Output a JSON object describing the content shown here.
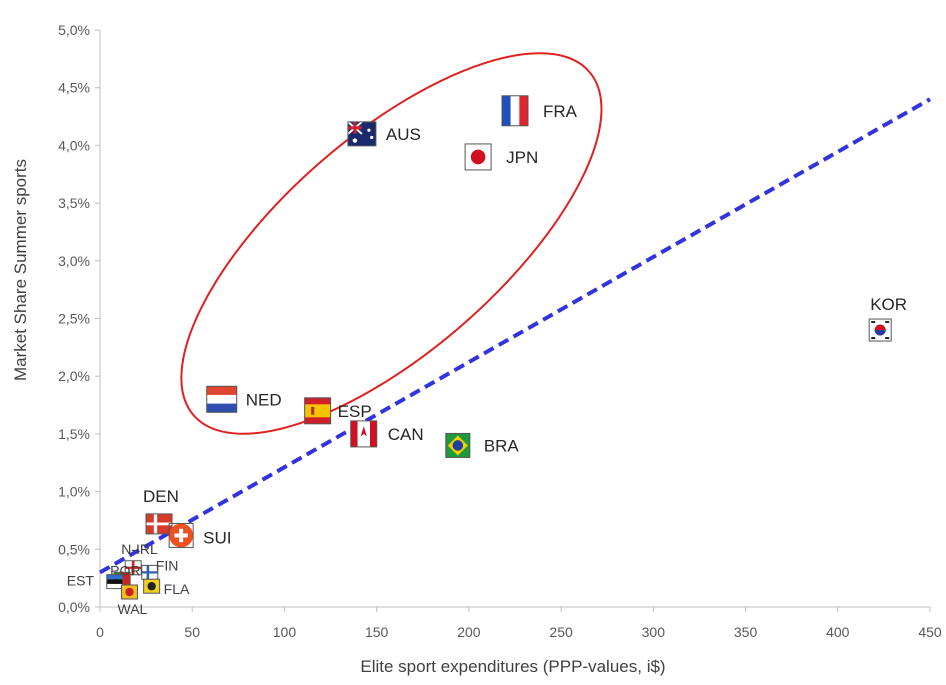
{
  "chart_data": {
    "type": "scatter",
    "title": "",
    "xlabel": "Elite sport expenditures (PPP-values, i$)",
    "ylabel": "Market Share Summer sports",
    "xlim": [
      0,
      450
    ],
    "ylim": [
      0,
      5.0
    ],
    "xticks": [
      0,
      50,
      100,
      150,
      200,
      250,
      300,
      350,
      400,
      450
    ],
    "xtick_labels": [
      "0",
      "50",
      "100",
      "150",
      "200",
      "250",
      "300",
      "350",
      "400",
      "450"
    ],
    "yticks": [
      0,
      0.5,
      1.0,
      1.5,
      2.0,
      2.5,
      3.0,
      3.5,
      4.0,
      4.5,
      5.0
    ],
    "ytick_labels": [
      "0,0%",
      "0,5%",
      "1,0%",
      "1,5%",
      "2,0%",
      "2,5%",
      "3,0%",
      "3,5%",
      "4,0%",
      "4,5%",
      "5,0%"
    ],
    "grid": false,
    "points": [
      {
        "label": "FRA",
        "x": 225,
        "y": 4.3,
        "flag": "france"
      },
      {
        "label": "AUS",
        "x": 142,
        "y": 4.1,
        "flag": "australia"
      },
      {
        "label": "JPN",
        "x": 205,
        "y": 3.9,
        "flag": "japan"
      },
      {
        "label": "KOR",
        "x": 423,
        "y": 2.4,
        "flag": "korea"
      },
      {
        "label": "NED",
        "x": 66,
        "y": 1.8,
        "flag": "netherlands"
      },
      {
        "label": "ESP",
        "x": 118,
        "y": 1.7,
        "flag": "spain"
      },
      {
        "label": "CAN",
        "x": 143,
        "y": 1.5,
        "flag": "canada"
      },
      {
        "label": "BRA",
        "x": 194,
        "y": 1.4,
        "flag": "brazil"
      },
      {
        "label": "DEN",
        "x": 32,
        "y": 0.72,
        "flag": "denmark"
      },
      {
        "label": "SUI",
        "x": 44,
        "y": 0.62,
        "flag": "switzerland"
      },
      {
        "label": "N-IRL",
        "x": 18,
        "y": 0.34,
        "flag": "n-ireland"
      },
      {
        "label": "POR",
        "x": 12,
        "y": 0.24,
        "flag": "portugal"
      },
      {
        "label": "FIN",
        "x": 27,
        "y": 0.3,
        "flag": "finland"
      },
      {
        "label": "EST",
        "x": 8,
        "y": 0.22,
        "flag": "estonia"
      },
      {
        "label": "FLA",
        "x": 28,
        "y": 0.18,
        "flag": "flanders"
      },
      {
        "label": "WAL",
        "x": 16,
        "y": 0.13,
        "flag": "wallonia"
      }
    ],
    "trendline": {
      "style": "dashed",
      "color": "#3333dd",
      "from": [
        0,
        0.3
      ],
      "to": [
        450,
        4.4
      ]
    },
    "highlight": {
      "shape": "ellipse",
      "color": "#e02020",
      "center": [
        158,
        3.15
      ],
      "encloses": [
        "AUS",
        "FRA",
        "JPN",
        "NED",
        "ESP"
      ]
    }
  }
}
